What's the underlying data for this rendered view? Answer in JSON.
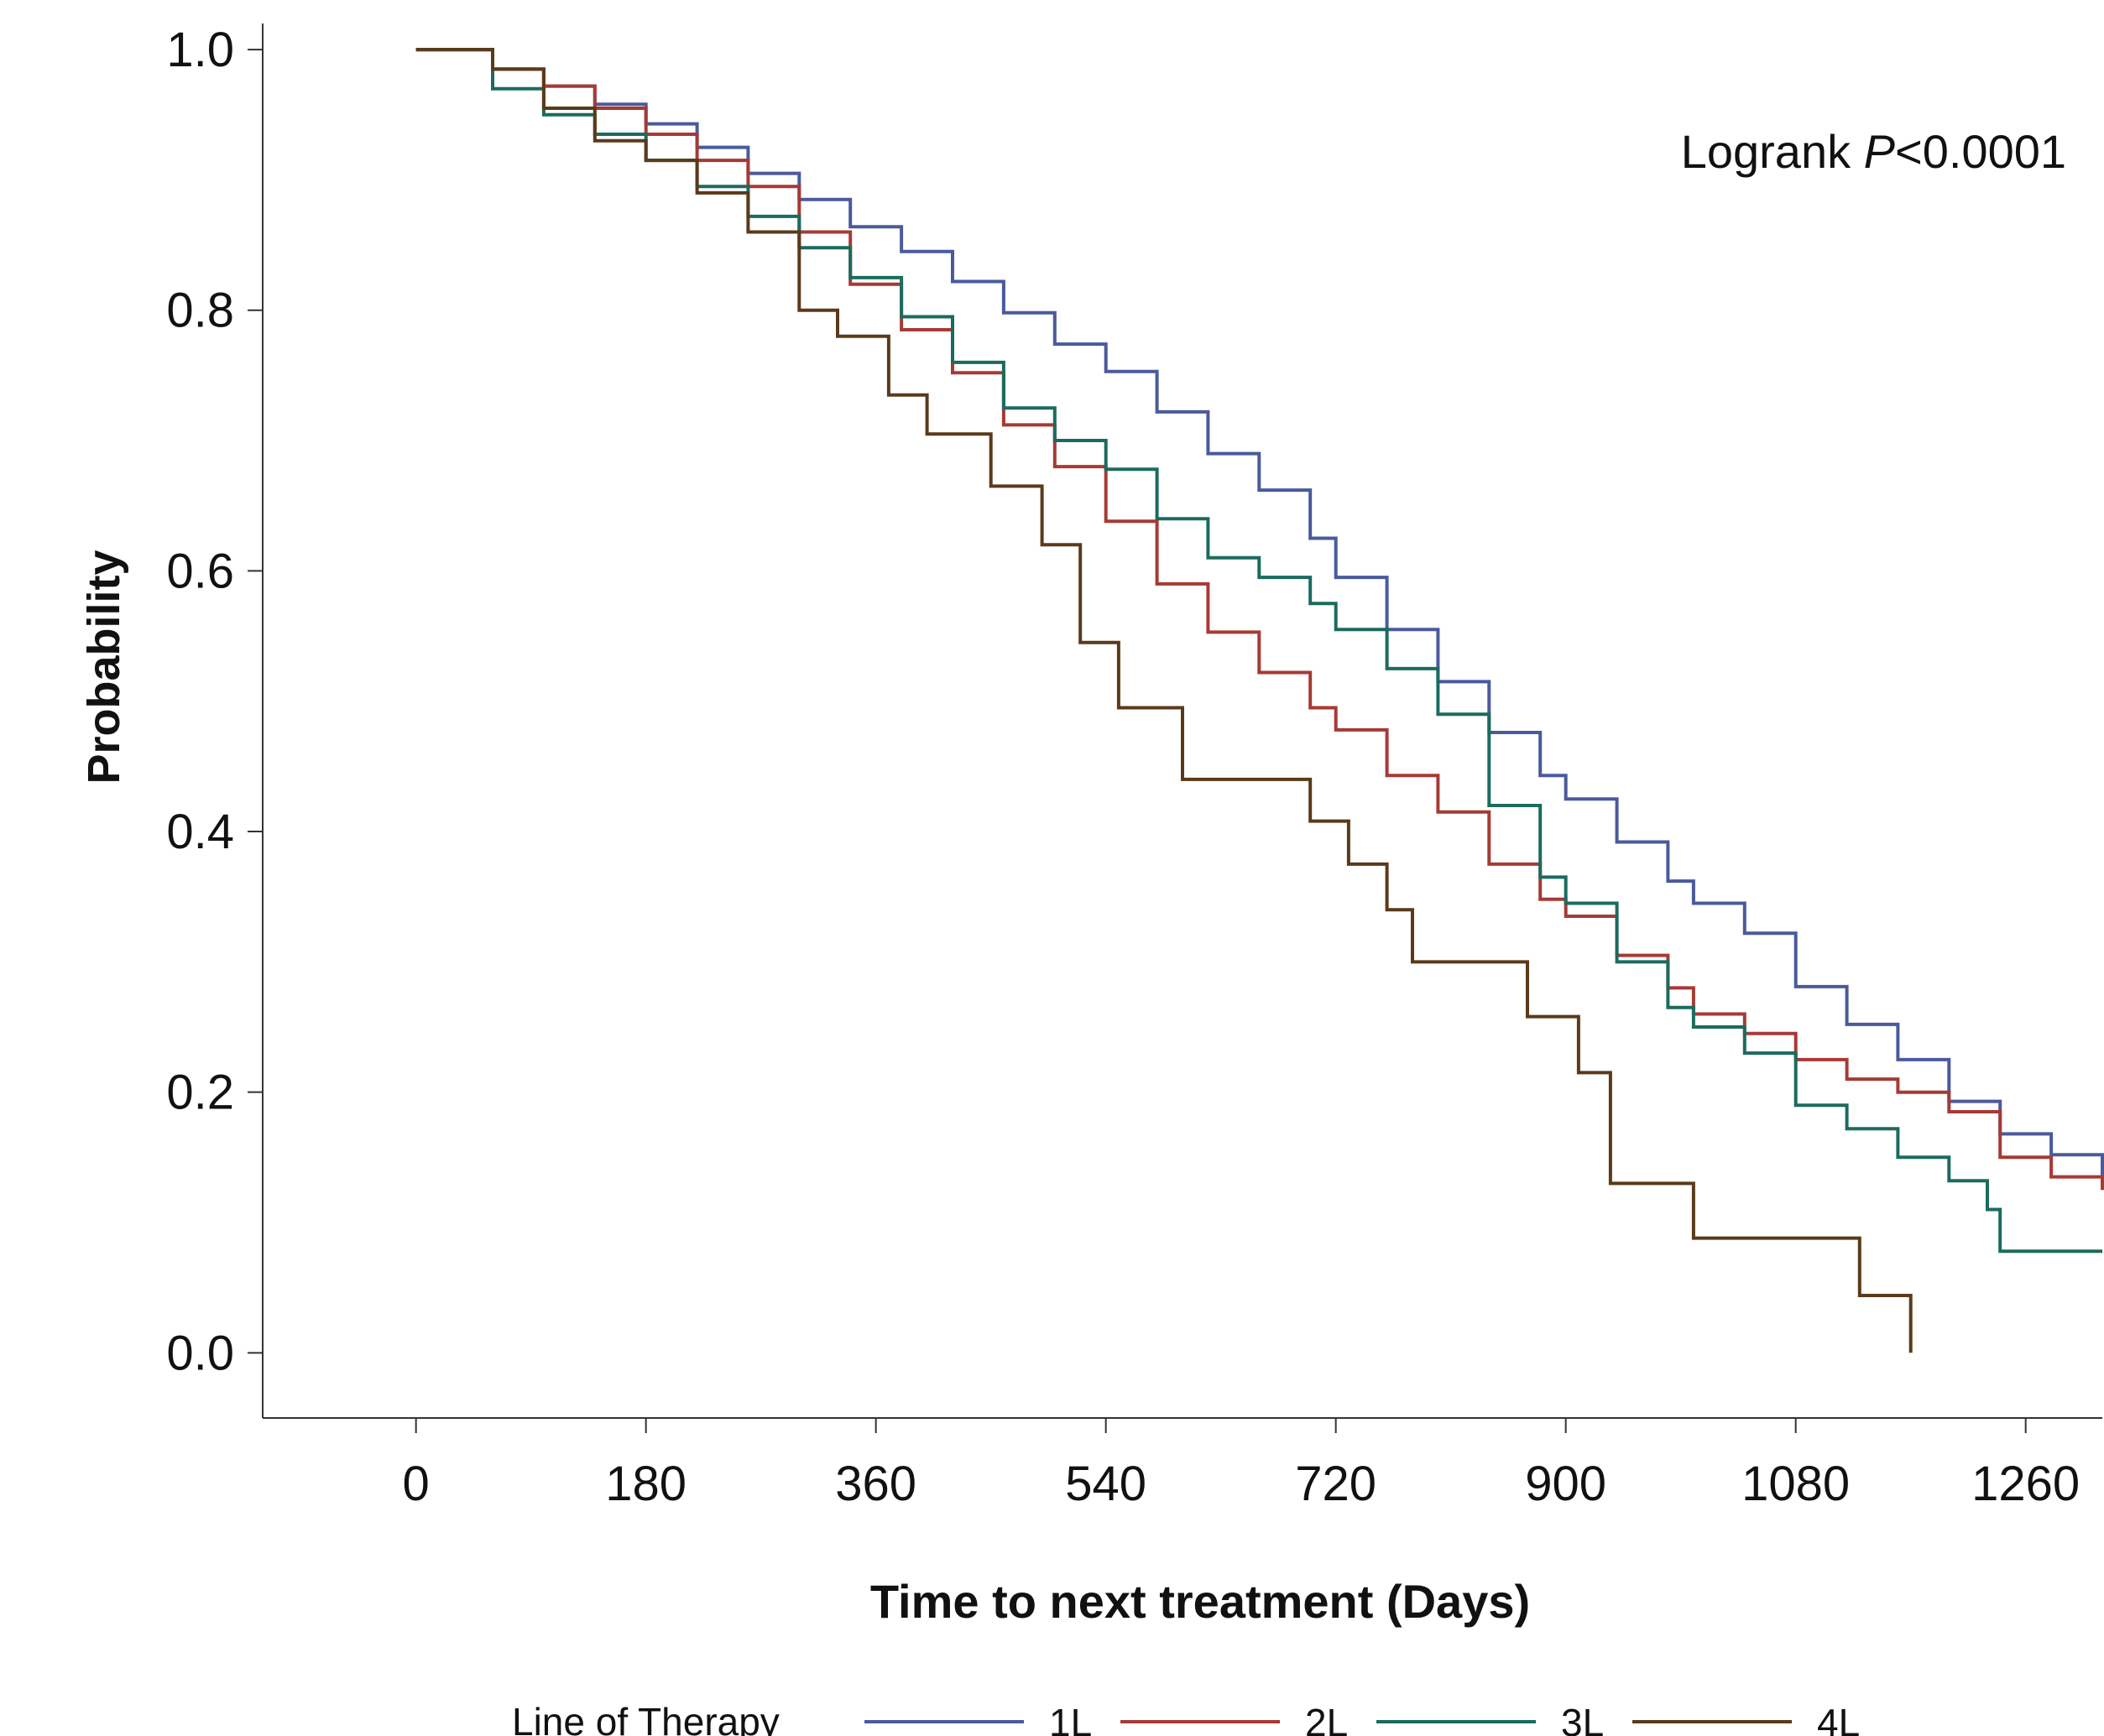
{
  "chart_data": {
    "type": "line",
    "step": true,
    "xlabel": "Time to next treatment (Days)",
    "ylabel": "Probability",
    "xlim": [
      -120,
      1320
    ],
    "ylim": [
      -0.05,
      1.02
    ],
    "xticks": [
      0,
      180,
      360,
      540,
      720,
      900,
      1080,
      1260
    ],
    "xtick_labels": [
      "0",
      "180",
      "360",
      "540",
      "720",
      "900",
      "1080",
      "1260"
    ],
    "yticks": [
      0.0,
      0.2,
      0.4,
      0.6,
      0.8,
      1.0
    ],
    "ytick_labels": [
      "0.0",
      "0.2",
      "0.4",
      "0.6",
      "0.8",
      "1.0"
    ],
    "grid": false,
    "annotation": {
      "prefix": "Logrank ",
      "italic": "P",
      "suffix": "<0.0001"
    },
    "legend": {
      "title": "Line of Therapy",
      "position": "bottom"
    },
    "series": [
      {
        "name": "1L",
        "color": "#4a5a9c",
        "x": [
          0,
          30,
          60,
          100,
          140,
          180,
          220,
          260,
          300,
          340,
          380,
          420,
          460,
          500,
          540,
          580,
          620,
          660,
          700,
          720,
          760,
          800,
          840,
          880,
          900,
          940,
          980,
          1000,
          1040,
          1080,
          1120,
          1160,
          1200,
          1240,
          1280,
          1320
        ],
        "y": [
          1.0,
          1.0,
          0.985,
          0.972,
          0.958,
          0.943,
          0.925,
          0.905,
          0.885,
          0.864,
          0.845,
          0.822,
          0.798,
          0.774,
          0.753,
          0.722,
          0.69,
          0.662,
          0.625,
          0.595,
          0.555,
          0.515,
          0.476,
          0.443,
          0.425,
          0.392,
          0.362,
          0.345,
          0.322,
          0.281,
          0.252,
          0.225,
          0.193,
          0.168,
          0.152,
          0.128
        ]
      },
      {
        "name": "2L",
        "color": "#a63a35",
        "x": [
          0,
          30,
          60,
          100,
          140,
          180,
          220,
          260,
          300,
          340,
          380,
          420,
          460,
          500,
          540,
          580,
          620,
          660,
          700,
          720,
          760,
          800,
          840,
          880,
          900,
          940,
          980,
          1000,
          1040,
          1080,
          1120,
          1160,
          1200,
          1240,
          1280,
          1320
        ],
        "y": [
          1.0,
          1.0,
          0.985,
          0.972,
          0.955,
          0.935,
          0.915,
          0.895,
          0.86,
          0.82,
          0.785,
          0.752,
          0.712,
          0.68,
          0.638,
          0.59,
          0.553,
          0.522,
          0.495,
          0.478,
          0.443,
          0.415,
          0.375,
          0.348,
          0.335,
          0.305,
          0.28,
          0.26,
          0.245,
          0.225,
          0.21,
          0.2,
          0.185,
          0.15,
          0.135,
          0.125
        ]
      },
      {
        "name": "3L",
        "color": "#1b6b5e",
        "x": [
          0,
          30,
          60,
          100,
          140,
          180,
          220,
          260,
          300,
          340,
          380,
          420,
          460,
          500,
          540,
          580,
          620,
          660,
          700,
          720,
          760,
          800,
          840,
          880,
          900,
          940,
          980,
          1000,
          1040,
          1080,
          1120,
          1160,
          1200,
          1230,
          1240,
          1320
        ],
        "y": [
          1.0,
          1.0,
          0.97,
          0.95,
          0.935,
          0.915,
          0.895,
          0.872,
          0.848,
          0.825,
          0.795,
          0.76,
          0.725,
          0.7,
          0.678,
          0.64,
          0.61,
          0.595,
          0.575,
          0.555,
          0.525,
          0.49,
          0.42,
          0.365,
          0.345,
          0.3,
          0.265,
          0.25,
          0.23,
          0.19,
          0.172,
          0.15,
          0.132,
          0.11,
          0.078,
          0.078
        ]
      },
      {
        "name": "4L",
        "color": "#5a3a1a",
        "x": [
          0,
          30,
          60,
          100,
          140,
          180,
          220,
          260,
          290,
          300,
          330,
          370,
          400,
          450,
          490,
          520,
          550,
          600,
          700,
          730,
          760,
          780,
          870,
          910,
          935,
          1000,
          1130,
          1150,
          1170
        ],
        "y": [
          1.0,
          1.0,
          0.985,
          0.955,
          0.93,
          0.915,
          0.89,
          0.86,
          0.86,
          0.8,
          0.78,
          0.735,
          0.705,
          0.665,
          0.62,
          0.545,
          0.495,
          0.44,
          0.408,
          0.375,
          0.34,
          0.3,
          0.258,
          0.215,
          0.13,
          0.088,
          0.044,
          0.044,
          0.0
        ]
      }
    ]
  }
}
